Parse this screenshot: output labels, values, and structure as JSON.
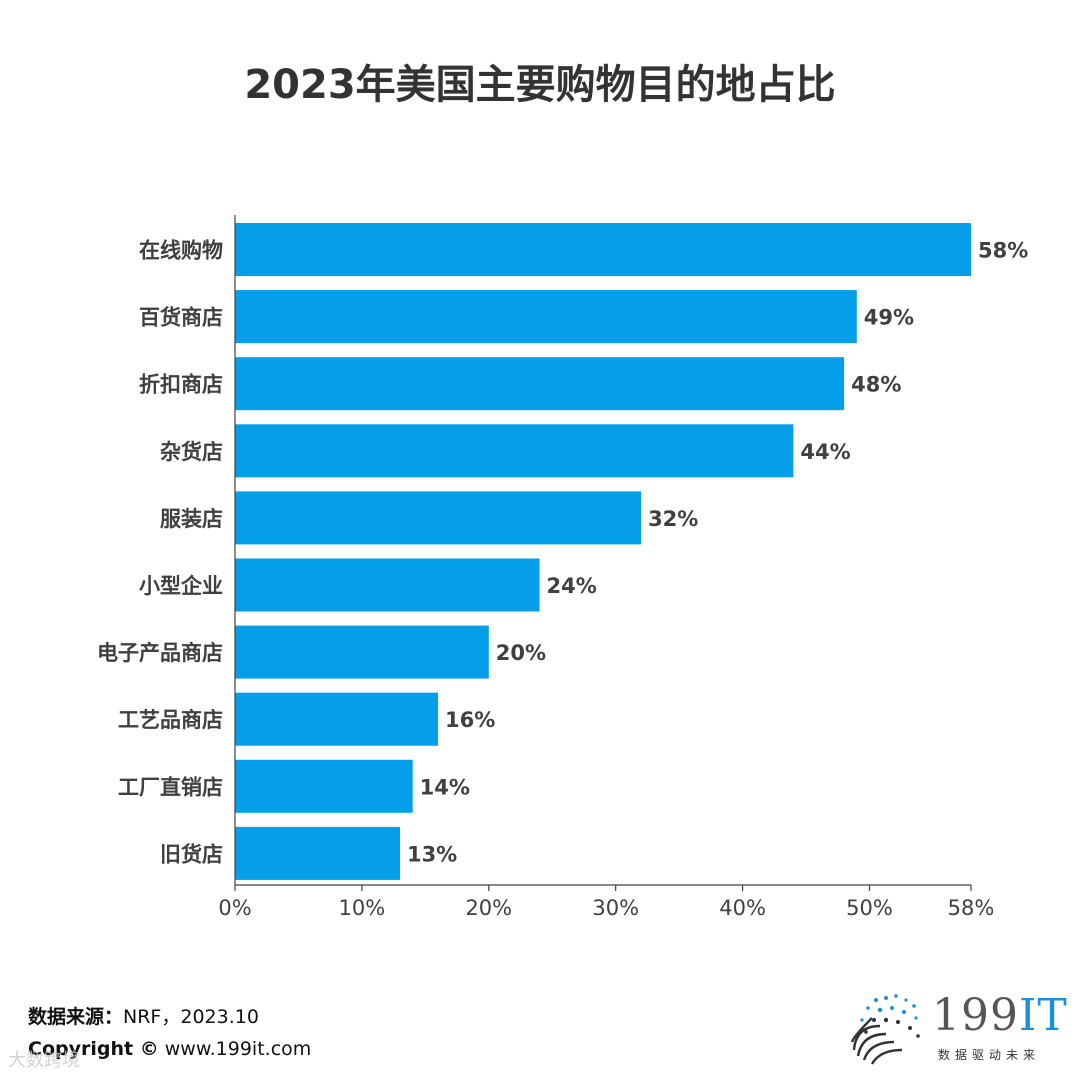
{
  "title": "2023年美国主要购物目的地占比",
  "colors": {
    "bar": "#049FE8",
    "axis": "#404040",
    "text": "#404040"
  },
  "chart_data": {
    "type": "bar",
    "orientation": "horizontal",
    "title": "2023年美国主要购物目的地占比",
    "categories": [
      "在线购物",
      "百货商店",
      "折扣商店",
      "杂货店",
      "服装店",
      "小型企业",
      "电子产品商店",
      "工艺品商店",
      "工厂直销店",
      "旧货店"
    ],
    "values": [
      58,
      49,
      48,
      44,
      32,
      24,
      20,
      16,
      14,
      13
    ],
    "value_labels": [
      "58%",
      "49%",
      "48%",
      "44%",
      "32%",
      "24%",
      "20%",
      "16%",
      "14%",
      "13%"
    ],
    "xlim": [
      0,
      58
    ],
    "xticks": [
      0,
      10,
      20,
      30,
      40,
      50,
      58
    ],
    "xtick_labels": [
      "0%",
      "10%",
      "20%",
      "30%",
      "40%",
      "50%",
      "58%"
    ],
    "xlabel": "",
    "ylabel": "",
    "grid": false
  },
  "footer": {
    "source_label": "数据来源：",
    "source_value": "NRF，2023.10",
    "copyright_label": "Copyright ©",
    "copyright_value": "www.199it.com",
    "watermark": "大数跨境"
  },
  "logo": {
    "text_main": "199",
    "text_accent": "IT",
    "tagline": "数据驱动未来"
  }
}
